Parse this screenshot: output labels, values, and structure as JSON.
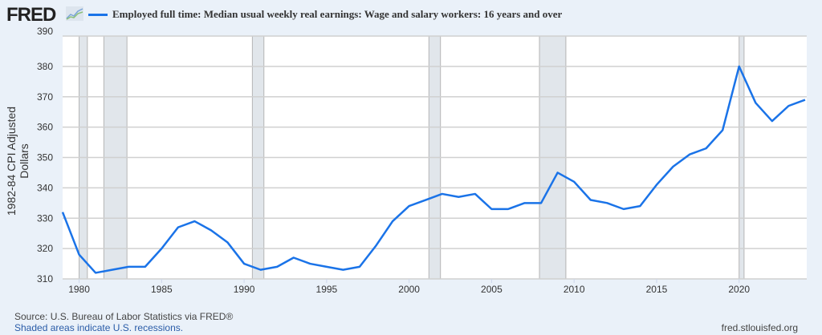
{
  "header": {
    "logo": "FRED",
    "legend": "Employed full time: Median usual weekly real earnings: Wage and salary workers: 16 years and over"
  },
  "footer": {
    "source": "Source: U.S. Bureau of Labor Statistics via FRED®",
    "shaded": "Shaded areas indicate U.S. recessions.",
    "site": "fred.stlouisfed.org"
  },
  "chart_data": {
    "type": "line",
    "title": "Employed full time: Median usual weekly real earnings: Wage and salary workers: 16 years and over",
    "xlabel": "",
    "ylabel": "1982-84 CPI Adjusted Dollars",
    "xlim": [
      1979,
      2024.1
    ],
    "ylim": [
      310,
      390
    ],
    "yticks": [
      310,
      320,
      330,
      340,
      350,
      360,
      370,
      380,
      390
    ],
    "xticks": [
      1980,
      1985,
      1990,
      1995,
      2000,
      2005,
      2010,
      2015,
      2020
    ],
    "grid": true,
    "color": "#1a73e8",
    "recessions": [
      [
        1980.0,
        1980.5
      ],
      [
        1981.5,
        1982.9
      ],
      [
        1990.5,
        1991.2
      ],
      [
        2001.2,
        2001.9
      ],
      [
        2007.9,
        2009.5
      ],
      [
        2020.0,
        2020.3
      ]
    ],
    "x": [
      1979,
      1980,
      1981,
      1982,
      1983,
      1984,
      1985,
      1986,
      1987,
      1988,
      1989,
      1990,
      1991,
      1992,
      1993,
      1994,
      1995,
      1996,
      1997,
      1998,
      1999,
      2000,
      2001,
      2002,
      2003,
      2004,
      2005,
      2006,
      2007,
      2008,
      2009,
      2010,
      2011,
      2012,
      2013,
      2014,
      2015,
      2016,
      2017,
      2018,
      2019,
      2020,
      2021,
      2022,
      2023,
      2024
    ],
    "series": [
      {
        "name": "Employed full time: Median usual weekly real earnings: Wage and salary workers: 16 years and over",
        "values": [
          332,
          318,
          312,
          313,
          314,
          314,
          320,
          327,
          329,
          326,
          322,
          315,
          313,
          314,
          317,
          315,
          314,
          313,
          314,
          321,
          329,
          334,
          336,
          338,
          337,
          338,
          333,
          333,
          335,
          335,
          345,
          342,
          336,
          335,
          333,
          334,
          341,
          347,
          351,
          353,
          359,
          380,
          368,
          362,
          367,
          369
        ]
      }
    ]
  }
}
